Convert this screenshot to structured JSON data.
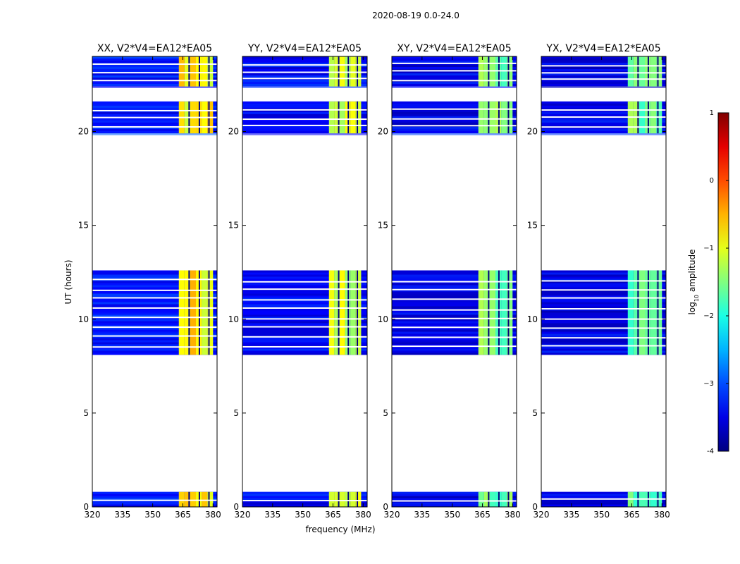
{
  "chart_data": {
    "type": "heatmap",
    "suptitle": "2020-08-19 0.0-24.0",
    "xlabel": "frequency (MHz)",
    "ylabel": "UT (hours)",
    "xlim": [
      320,
      382
    ],
    "ylim": [
      0,
      24
    ],
    "xticks": [
      320,
      335,
      350,
      365,
      380
    ],
    "yticks": [
      0,
      5,
      10,
      15,
      20
    ],
    "time_blocks_hours": [
      [
        0.0,
        0.8
      ],
      [
        8.1,
        12.6
      ],
      [
        19.9,
        21.6
      ],
      [
        22.4,
        24.0
      ]
    ],
    "colorbar": {
      "label": "log",
      "label_sub": "10",
      "label_rest": " amplitude",
      "range": [
        -4,
        1
      ],
      "ticks": [
        "-4",
        "−3",
        "−2",
        "−1",
        "0",
        "1"
      ],
      "colormap": "jet"
    },
    "panels": [
      {
        "title": "XX, V2*V4=EA12*EA05",
        "polarization": "XX",
        "bright_band_mhz": [
          363,
          380
        ],
        "background_log_amp": -3.3,
        "band_log_amp": -0.8
      },
      {
        "title": "YY, V2*V4=EA12*EA05",
        "polarization": "YY",
        "bright_band_mhz": [
          363,
          379
        ],
        "background_log_amp": -3.4,
        "band_log_amp": -1.2
      },
      {
        "title": "XY, V2*V4=EA12*EA05",
        "polarization": "XY",
        "bright_band_mhz": [
          363,
          380
        ],
        "background_log_amp": -3.5,
        "band_log_amp": -1.6
      },
      {
        "title": "YX, V2*V4=EA12*EA05",
        "polarization": "YX",
        "bright_band_mhz": [
          363,
          380
        ],
        "background_log_amp": -3.5,
        "band_log_amp": -1.6
      }
    ]
  }
}
